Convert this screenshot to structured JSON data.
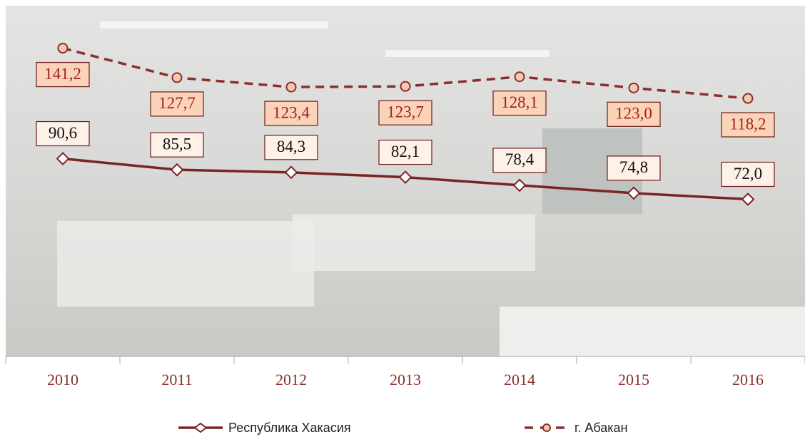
{
  "chart_data": {
    "type": "line",
    "categories": [
      "2010",
      "2011",
      "2012",
      "2013",
      "2014",
      "2015",
      "2016"
    ],
    "series": [
      {
        "name": "Республика Хакасия",
        "color": "#7b2426",
        "dash": false,
        "marker": "diamond",
        "values": [
          90.6,
          85.5,
          84.3,
          82.1,
          78.4,
          74.8,
          72.0
        ],
        "value_labels": [
          "90,6",
          "85,5",
          "84,3",
          "82,1",
          "78,4",
          "74,8",
          "72,0"
        ]
      },
      {
        "name": "г. Абакан",
        "color": "#8b2e2e",
        "dash": true,
        "marker": "circle",
        "values": [
          141.2,
          127.7,
          123.4,
          123.7,
          128.1,
          123.0,
          118.2
        ],
        "value_labels": [
          "141,2",
          "127,7",
          "123,4",
          "123,7",
          "128,1",
          "123,0",
          "118,2"
        ]
      }
    ],
    "ylim": [
      0,
      160
    ]
  }
}
